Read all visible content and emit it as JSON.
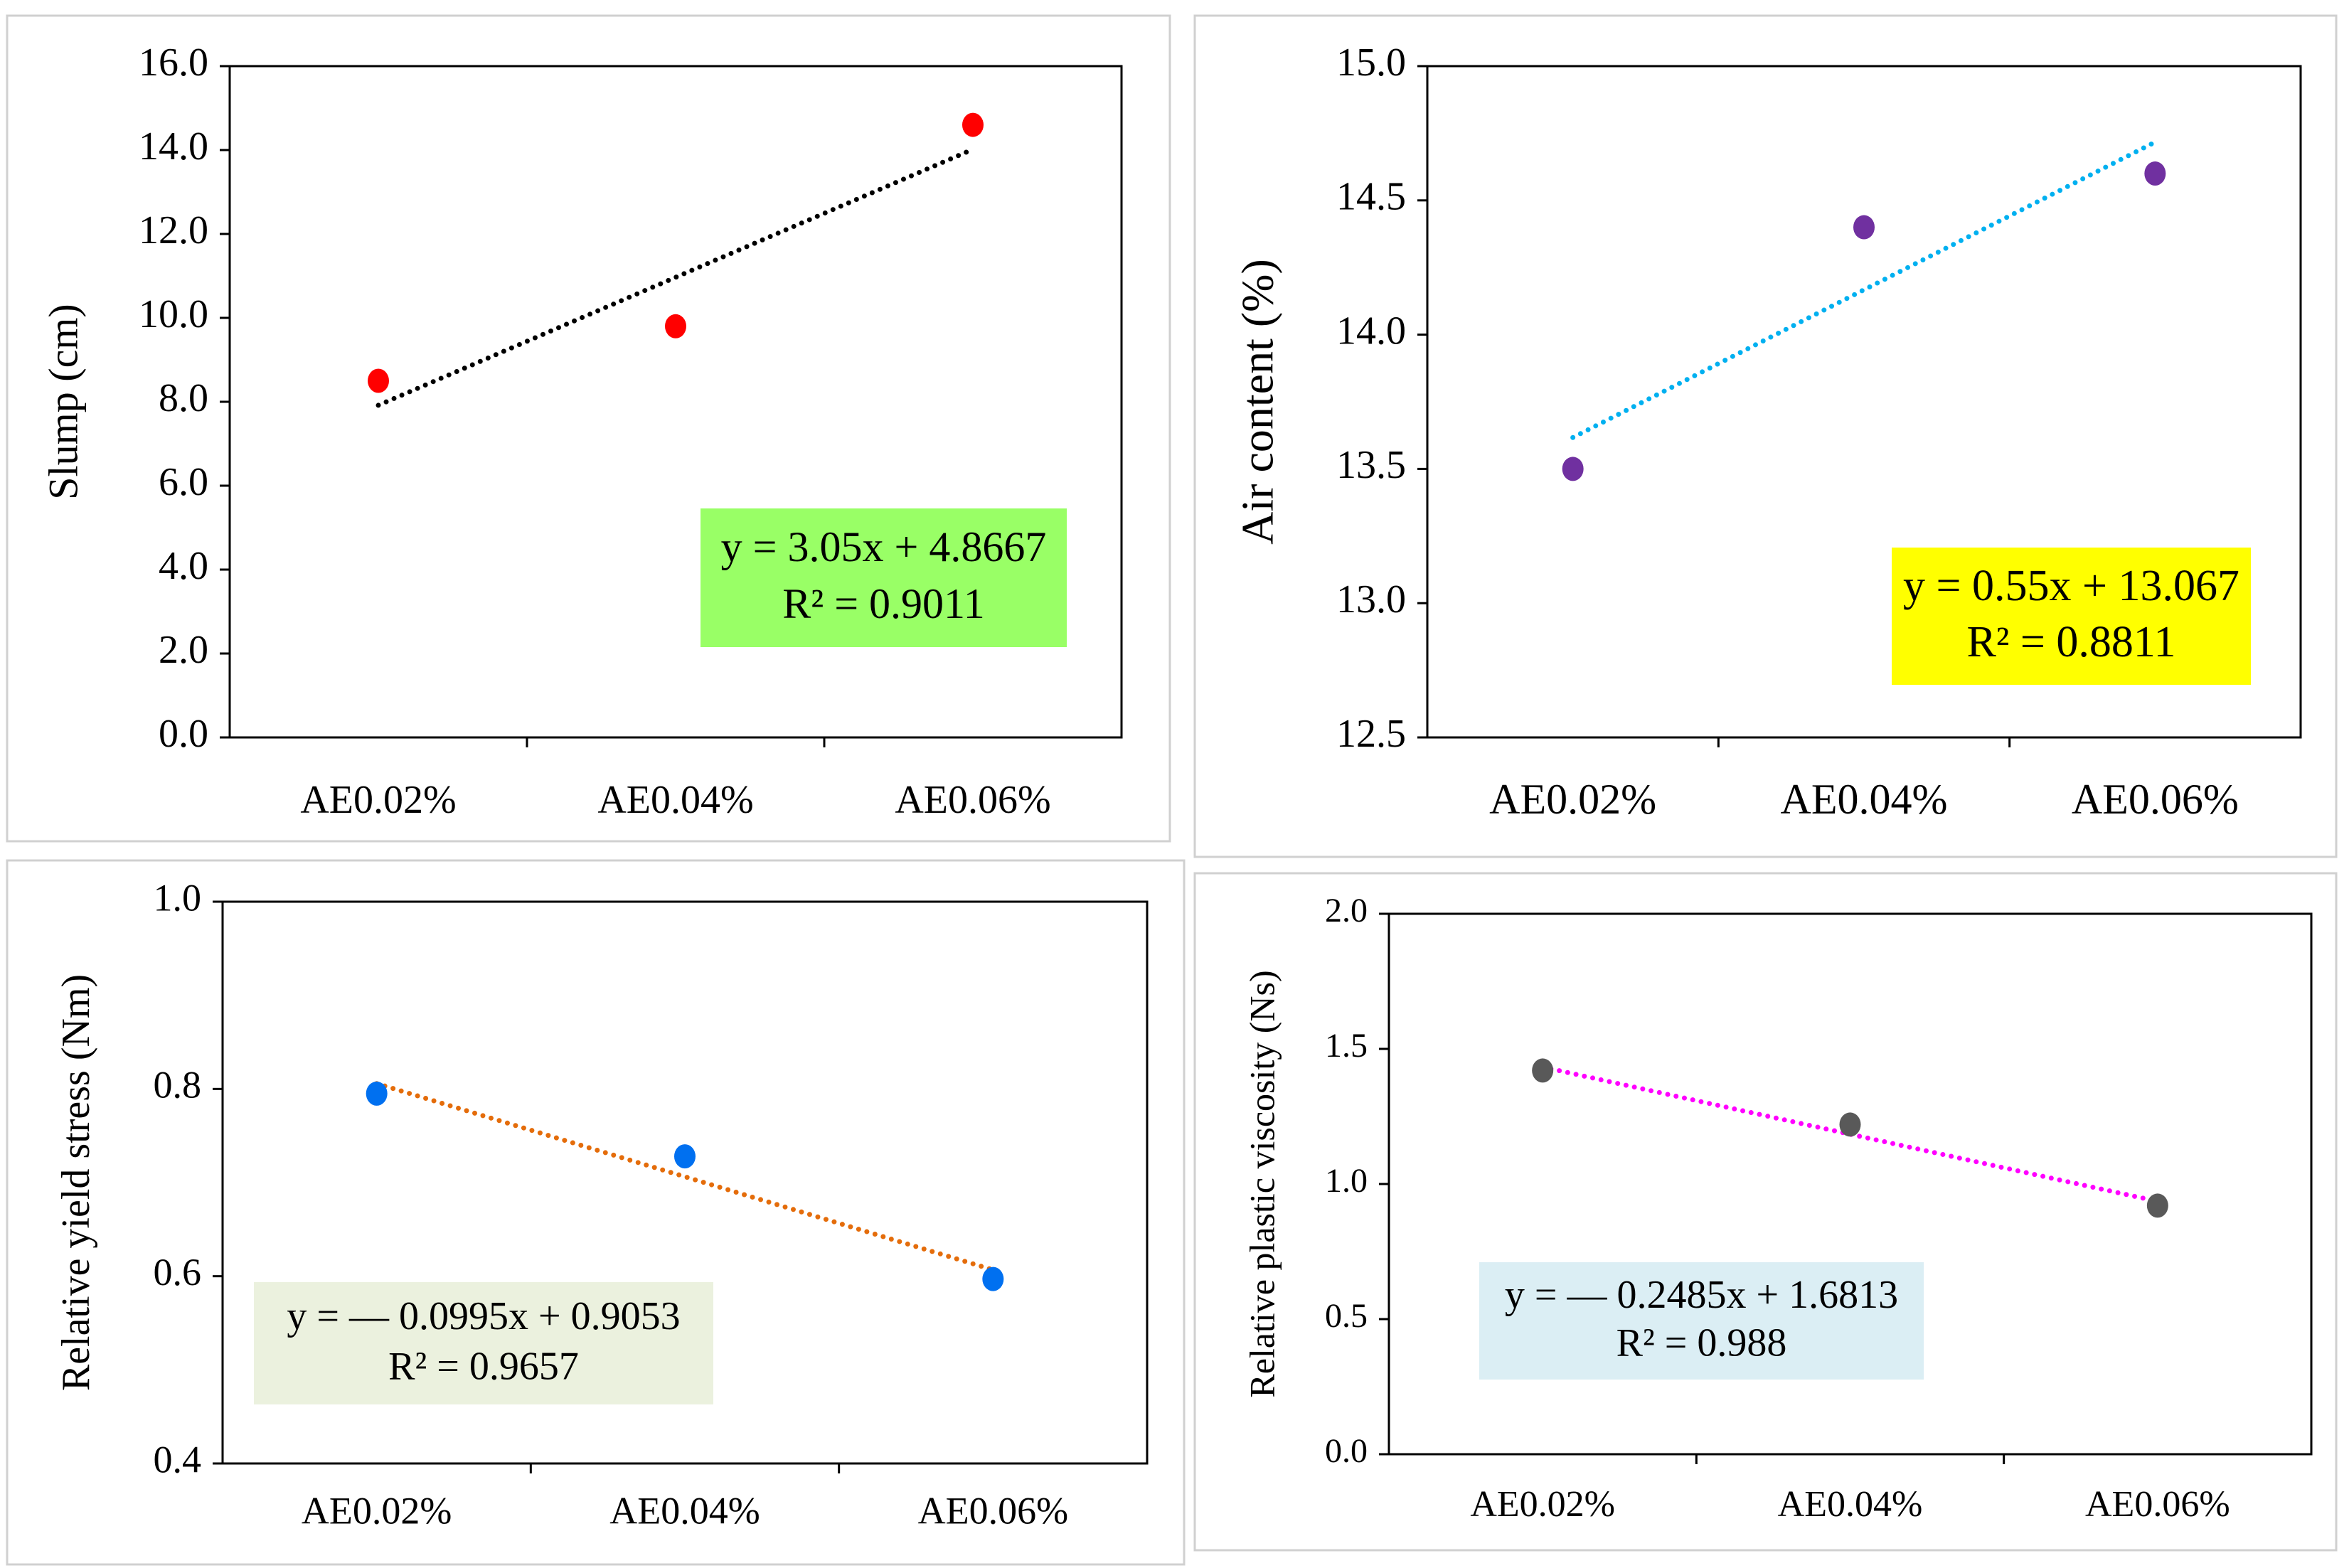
{
  "chart_data": [
    {
      "type": "scatter",
      "categories": [
        "AE0.02%",
        "AE0.04%",
        "AE0.06%"
      ],
      "values": [
        8.5,
        9.8,
        14.6
      ],
      "ylabel": "Slump (cm)",
      "xlabel": "",
      "ylim": [
        0,
        16
      ],
      "yticks": [
        "0.0",
        "2.0",
        "4.0",
        "6.0",
        "8.0",
        "10.0",
        "12.0",
        "14.0",
        "16.0"
      ],
      "marker_color": "#ff0000",
      "trendline": {
        "slope": 3.05,
        "intercept": 4.8667,
        "color": "#000000",
        "style": "dotted"
      },
      "equation_lines": [
        "y = 3.05x + 4.8667",
        "R² = 0.9011"
      ],
      "equation_box_color": "#99ff66",
      "equation_position": "bottom-right",
      "grid": false
    },
    {
      "type": "scatter",
      "categories": [
        "AE0.02%",
        "AE0.04%",
        "AE0.06%"
      ],
      "values": [
        13.5,
        14.4,
        14.6
      ],
      "ylabel": "Air content (%)",
      "xlabel": "",
      "ylim": [
        12.5,
        15
      ],
      "yticks": [
        "12.5",
        "13.0",
        "13.5",
        "14.0",
        "14.5",
        "15.0"
      ],
      "marker_color": "#7030a0",
      "trendline": {
        "slope": 0.55,
        "intercept": 13.067,
        "color": "#00b0f0",
        "style": "dotted"
      },
      "equation_lines": [
        "y = 0.55x + 13.067",
        "R² = 0.8811"
      ],
      "equation_box_color": "#ffff00",
      "equation_position": "bottom-right",
      "grid": false
    },
    {
      "type": "scatter",
      "categories": [
        "AE0.02%",
        "AE0.04%",
        "AE0.06%"
      ],
      "values": [
        0.795,
        0.728,
        0.597
      ],
      "ylabel": "Relative yield stress (Nm)",
      "xlabel": "",
      "ylim": [
        0.4,
        1.0
      ],
      "yticks": [
        "0.4",
        "0.6",
        "0.8",
        "1.0"
      ],
      "marker_color": "#0070f0",
      "trendline": {
        "slope": -0.0995,
        "intercept": 0.9053,
        "color": "#e46c0a",
        "style": "dotted"
      },
      "equation_lines": [
        "y = — 0.0995x + 0.9053",
        "R² = 0.9657"
      ],
      "equation_box_color": "#ebf1de",
      "equation_position": "bottom-left",
      "grid": false
    },
    {
      "type": "scatter",
      "categories": [
        "AE0.02%",
        "AE0.04%",
        "AE0.06%"
      ],
      "values": [
        1.42,
        1.22,
        0.92
      ],
      "ylabel": "Relative plastic viscosity (Ns)",
      "xlabel": "",
      "ylim": [
        0,
        2.0
      ],
      "yticks": [
        "0.0",
        "0.5",
        "1.0",
        "1.5",
        "2.0"
      ],
      "marker_color": "#595959",
      "trendline": {
        "slope": -0.2485,
        "intercept": 1.6813,
        "color": "#ff00ff",
        "style": "dotted"
      },
      "equation_lines": [
        "y = — 0.2485x + 1.6813",
        "R² = 0.988"
      ],
      "equation_box_color": "#dbeef4",
      "equation_position": "bottom-left",
      "grid": false
    }
  ]
}
